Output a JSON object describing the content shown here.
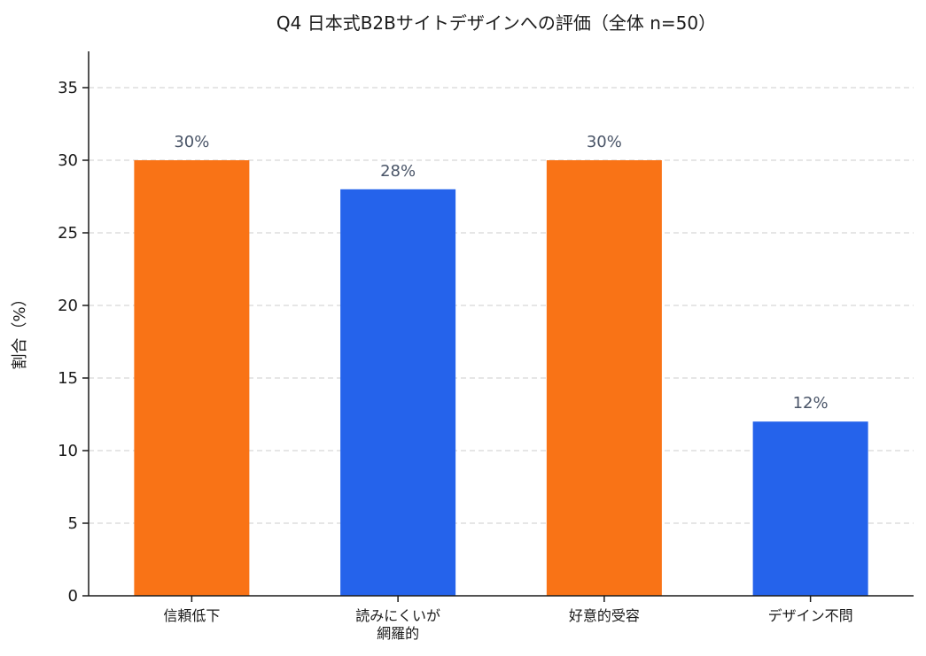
{
  "chart_data": {
    "type": "bar",
    "title": "Q4 日本式B2Bサイトデザインへの評価（全体 n=50）",
    "xlabel": "",
    "ylabel": "割合（%）",
    "ylim": [
      0,
      37.5
    ],
    "yticks": [
      0,
      5,
      10,
      15,
      20,
      25,
      30,
      35
    ],
    "grid": "y-dashed",
    "categories": [
      [
        "信頼低下"
      ],
      [
        "読みにくいが",
        "網羅的"
      ],
      [
        "好意的受容"
      ],
      [
        "デザイン不問"
      ]
    ],
    "values": [
      30,
      28,
      30,
      12
    ],
    "value_labels": [
      "30%",
      "28%",
      "30%",
      "12%"
    ],
    "colors": [
      "#f97316",
      "#2563eb",
      "#f97316",
      "#2563eb"
    ]
  }
}
